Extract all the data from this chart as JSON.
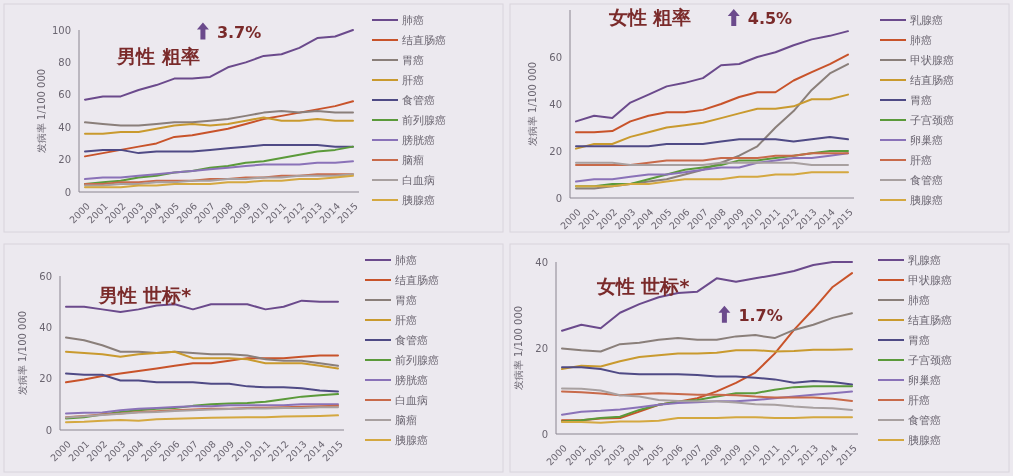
{
  "chart_data": [
    {
      "type": "line",
      "title": "男性 粗率",
      "ylabel": "发病率 1/100 000",
      "annotations": [
        "3.7%"
      ],
      "legend": "right",
      "categories": [
        "2000",
        "2001",
        "2002",
        "2003",
        "2004",
        "2005",
        "2006",
        "2007",
        "2008",
        "2009",
        "2010",
        "2011",
        "2012",
        "2013",
        "2014",
        "2015"
      ],
      "ylim": [
        0,
        100
      ],
      "yticks": [
        0,
        20,
        40,
        60,
        80,
        100
      ],
      "series": [
        {
          "name": "肺癌",
          "color": "#6b4a8c",
          "values": [
            57,
            59,
            59,
            63,
            66,
            70,
            70,
            71,
            77,
            80,
            84,
            85,
            89,
            95,
            96,
            100
          ]
        },
        {
          "name": "结直肠癌",
          "color": "#c8532a",
          "values": [
            22,
            24,
            26,
            28,
            30,
            34,
            35,
            37,
            39,
            42,
            45,
            47,
            49,
            51,
            53,
            56
          ]
        },
        {
          "name": "胃癌",
          "color": "#8a7f7a",
          "values": [
            43,
            42,
            41,
            41,
            42,
            43,
            43,
            44,
            45,
            47,
            49,
            50,
            49,
            50,
            49,
            49
          ]
        },
        {
          "name": "肝癌",
          "color": "#c99a2e",
          "values": [
            36,
            36,
            37,
            37,
            39,
            41,
            42,
            41,
            42,
            44,
            46,
            44,
            44,
            45,
            44,
            44
          ]
        },
        {
          "name": "食管癌",
          "color": "#4f4a85",
          "values": [
            25,
            26,
            26,
            24,
            25,
            25,
            25,
            26,
            27,
            28,
            29,
            29,
            29,
            29,
            28,
            28
          ]
        },
        {
          "name": "前列腺癌",
          "color": "#5b9a3a",
          "values": [
            5,
            6,
            7,
            9,
            10,
            12,
            13,
            15,
            16,
            18,
            19,
            21,
            23,
            25,
            26,
            28
          ]
        },
        {
          "name": "膀胱癌",
          "color": "#8a72b8",
          "values": [
            8,
            9,
            9,
            10,
            11,
            12,
            13,
            14,
            15,
            16,
            17,
            17,
            17,
            18,
            18,
            19
          ]
        },
        {
          "name": "脑瘤",
          "color": "#c86a4a",
          "values": [
            5,
            5,
            6,
            6,
            7,
            7,
            7,
            8,
            8,
            9,
            9,
            10,
            10,
            11,
            11,
            11
          ]
        },
        {
          "name": "白血病",
          "color": "#a8a0a0",
          "values": [
            4,
            4,
            5,
            5,
            6,
            6,
            7,
            7,
            8,
            8,
            9,
            9,
            10,
            10,
            10,
            11
          ]
        },
        {
          "name": "胰腺癌",
          "color": "#d4a840",
          "values": [
            3,
            3,
            3,
            4,
            4,
            5,
            5,
            5,
            6,
            6,
            7,
            7,
            8,
            8,
            9,
            10
          ]
        }
      ]
    },
    {
      "type": "line",
      "title": "女性 粗率",
      "ylabel": "发病率 1/100 000",
      "annotations": [
        "4.5%"
      ],
      "legend": "right",
      "categories": [
        "2000",
        "2001",
        "2002",
        "2003",
        "2004",
        "2005",
        "2006",
        "2007",
        "2008",
        "2009",
        "2010",
        "2011",
        "2012",
        "2013",
        "2014",
        "2015"
      ],
      "ylim": [
        0,
        80
      ],
      "yticks": [
        0,
        20,
        40,
        60
      ],
      "series": [
        {
          "name": "乳腺癌",
          "color": "#6b4a8c",
          "values": [
            32.6,
            35,
            34,
            40.6,
            44,
            47.5,
            49,
            51,
            56.5,
            57,
            60,
            62,
            65,
            67.5,
            69,
            71
          ]
        },
        {
          "name": "肺癌",
          "color": "#c8532a",
          "values": [
            28,
            28,
            28.5,
            32.6,
            35,
            36.5,
            36.5,
            37.5,
            40,
            43,
            45,
            45,
            50,
            53.6,
            57,
            61
          ]
        },
        {
          "name": "甲状腺癌",
          "color": "#8a7f7a",
          "values": [
            4,
            4,
            5,
            6,
            7,
            8,
            10,
            12,
            15,
            18,
            22,
            30,
            37,
            46,
            53,
            57
          ]
        },
        {
          "name": "结直肠癌",
          "color": "#c99a2e",
          "values": [
            21,
            23,
            23,
            26,
            28,
            30,
            31,
            32,
            34,
            36,
            38,
            38,
            39,
            42,
            42,
            44
          ]
        },
        {
          "name": "胃癌",
          "color": "#4f4a85",
          "values": [
            22,
            22,
            22,
            22,
            22,
            23,
            23,
            23,
            24,
            25,
            25,
            25,
            24,
            25,
            26,
            25
          ]
        },
        {
          "name": "子宫颈癌",
          "color": "#5b9a3a",
          "values": [
            5,
            5,
            6,
            6,
            8,
            10,
            12,
            13,
            14,
            16,
            16,
            17,
            18,
            19,
            20,
            20
          ]
        },
        {
          "name": "卵巢癌",
          "color": "#8a72b8",
          "values": [
            7,
            8,
            8,
            9,
            10,
            10,
            11,
            12,
            13,
            13,
            15,
            16,
            17,
            17,
            18,
            19
          ]
        },
        {
          "name": "肝癌",
          "color": "#c86a4a",
          "values": [
            14,
            14,
            14,
            14,
            15,
            16,
            16,
            16,
            17,
            17,
            17,
            18,
            18,
            19,
            19,
            19
          ]
        },
        {
          "name": "食管癌",
          "color": "#a8a0a0",
          "values": [
            15,
            15,
            15,
            14,
            14,
            14,
            14,
            14,
            15,
            15,
            15,
            15,
            15,
            14,
            14,
            14
          ]
        },
        {
          "name": "胰腺癌",
          "color": "#d4a840",
          "values": [
            5,
            5,
            5,
            6,
            6,
            7,
            8,
            8,
            8,
            9,
            9,
            10,
            10,
            11,
            11,
            11
          ]
        }
      ]
    },
    {
      "type": "line",
      "title": "男性 世标*",
      "ylabel": "发病率 1/100 000",
      "legend": "right",
      "categories": [
        "2000",
        "2001",
        "2002",
        "2003",
        "2004",
        "2005",
        "2006",
        "2007",
        "2008",
        "2009",
        "2010",
        "2011",
        "2012",
        "2013",
        "2014",
        "2015"
      ],
      "ylim": [
        0,
        60
      ],
      "yticks": [
        0,
        20,
        40,
        60
      ],
      "series": [
        {
          "name": "肺癌",
          "color": "#6b4a8c",
          "values": [
            48,
            48,
            47,
            46,
            47,
            48.5,
            49,
            47,
            49,
            49,
            49,
            47,
            48,
            50.4,
            50,
            50
          ]
        },
        {
          "name": "结直肠癌",
          "color": "#c8532a",
          "values": [
            18.6,
            19.7,
            21,
            22,
            23,
            24,
            25,
            26,
            26,
            27,
            28,
            28,
            28,
            28.5,
            29,
            29
          ]
        },
        {
          "name": "胃癌",
          "color": "#8a7f7a",
          "values": [
            36,
            35,
            33,
            30.5,
            30.5,
            30,
            30.5,
            30,
            29.5,
            29.5,
            29,
            27.6,
            27,
            27,
            26,
            25
          ]
        },
        {
          "name": "肝癌",
          "color": "#c99a2e",
          "values": [
            30.5,
            30,
            29.5,
            28.5,
            29.5,
            30,
            30.5,
            28,
            28,
            28,
            27.6,
            26,
            26,
            26,
            25,
            24
          ]
        },
        {
          "name": "食管癌",
          "color": "#4f4a85",
          "values": [
            22,
            21.5,
            21.5,
            19.3,
            19.3,
            18.6,
            18.6,
            18.6,
            18,
            18,
            17,
            16.7,
            16.7,
            16.3,
            15.4,
            15
          ]
        },
        {
          "name": "前列腺癌",
          "color": "#5b9a3a",
          "values": [
            4.5,
            5,
            6,
            7,
            7.7,
            8.3,
            8.6,
            9.4,
            10,
            10.3,
            10.5,
            11,
            12,
            13,
            13.5,
            14
          ]
        },
        {
          "name": "膀胱癌",
          "color": "#8a72b8",
          "values": [
            6.4,
            6.7,
            6.8,
            7.7,
            8.3,
            8.6,
            9,
            9.3,
            9.3,
            9.6,
            9.6,
            9.6,
            9.6,
            10,
            10,
            10
          ]
        },
        {
          "name": "白血病",
          "color": "#c86a4a",
          "values": [
            5,
            5.5,
            6,
            6.4,
            7,
            7.3,
            7.7,
            8,
            8.3,
            8.3,
            8.6,
            8.7,
            8.9,
            9.1,
            9.3,
            9.4
          ]
        },
        {
          "name": "脑瘤",
          "color": "#a8a0a0",
          "values": [
            4.9,
            5.4,
            5.8,
            6.3,
            6.8,
            7,
            7.4,
            7.7,
            8,
            8.2,
            8.4,
            8.4,
            8.6,
            8.6,
            8.9,
            8.9
          ]
        },
        {
          "name": "胰腺癌",
          "color": "#d4a840",
          "values": [
            3,
            3.2,
            3.6,
            3.9,
            3.6,
            4.2,
            4.4,
            4.6,
            4.8,
            4.9,
            5,
            5,
            5.3,
            5.4,
            5.5,
            5.7
          ]
        }
      ]
    },
    {
      "type": "line",
      "title": "女性 世标*",
      "ylabel": "发病率 1/100 000",
      "annotations": [
        "1.7%"
      ],
      "legend": "right",
      "categories": [
        "2000",
        "2001",
        "2002",
        "2003",
        "2004",
        "2005",
        "2006",
        "2007",
        "2008",
        "2009",
        "2010",
        "2011",
        "2012",
        "2013",
        "2014",
        "2015"
      ],
      "ylim": [
        0,
        40
      ],
      "yticks": [
        0,
        20,
        40
      ],
      "series": [
        {
          "name": "乳腺癌",
          "color": "#6b4a8c",
          "values": [
            24,
            25.4,
            24.6,
            28.2,
            30.2,
            31.8,
            32.8,
            33.1,
            36.2,
            35.4,
            36.2,
            37,
            37.9,
            39.3,
            40,
            40
          ]
        },
        {
          "name": "甲状腺癌",
          "color": "#c8532a",
          "values": [
            3.2,
            3.2,
            3.6,
            3.7,
            5.2,
            6.8,
            7.5,
            8.3,
            9.9,
            11.9,
            14.3,
            18.7,
            24.2,
            29,
            34.2,
            37.4
          ]
        },
        {
          "name": "肺癌",
          "color": "#8a7f7a",
          "values": [
            19.9,
            19.5,
            19.2,
            20.9,
            21.2,
            21.9,
            22.3,
            21.9,
            21.9,
            22.7,
            23,
            22.3,
            24.2,
            25.4,
            27,
            28.1
          ]
        },
        {
          "name": "结直肠癌",
          "color": "#c99a2e",
          "values": [
            15.1,
            15.9,
            15.7,
            16.9,
            17.9,
            18.3,
            18.7,
            18.7,
            18.9,
            19.5,
            19.5,
            19.2,
            19.3,
            19.6,
            19.6,
            19.7
          ]
        },
        {
          "name": "胃癌",
          "color": "#4f4a85",
          "values": [
            15.5,
            15.5,
            15.1,
            14.1,
            13.9,
            13.9,
            13.9,
            13.7,
            13.4,
            13.4,
            13.1,
            12.7,
            11.9,
            12.3,
            12.1,
            11.5
          ]
        },
        {
          "name": "子宫颈癌",
          "color": "#5b9a3a",
          "values": [
            2.9,
            3.2,
            3.7,
            4,
            5.6,
            6.8,
            7.5,
            7.9,
            8.7,
            9.5,
            9.5,
            10.3,
            10.9,
            11.1,
            11.1,
            11.1
          ]
        },
        {
          "name": "卵巢癌",
          "color": "#8a72b8",
          "values": [
            4.5,
            5.2,
            5.4,
            5.7,
            6.2,
            6.8,
            7.2,
            7.4,
            7.6,
            7.6,
            7.9,
            8.3,
            8.7,
            9.1,
            9.5,
            9.9
          ]
        },
        {
          "name": "肝癌",
          "color": "#c86a4a",
          "values": [
            9.9,
            9.7,
            9.4,
            9,
            9.3,
            9.5,
            9.3,
            9.1,
            9.1,
            9,
            8.7,
            8.5,
            8.5,
            8.5,
            8.2,
            7.7
          ]
        },
        {
          "name": "食管癌",
          "color": "#a8a0a0",
          "values": [
            10.6,
            10.5,
            10.1,
            9,
            8.7,
            7.9,
            7.7,
            7.6,
            7.6,
            7.3,
            6.9,
            6.8,
            6.4,
            6.1,
            6,
            5.6
          ]
        },
        {
          "name": "胰腺癌",
          "color": "#d4a840",
          "values": [
            2.8,
            2.8,
            2.6,
            2.9,
            2.9,
            3.1,
            3.7,
            3.7,
            3.7,
            3.9,
            3.9,
            3.7,
            3.7,
            3.9,
            3.9,
            3.9
          ]
        }
      ]
    }
  ]
}
